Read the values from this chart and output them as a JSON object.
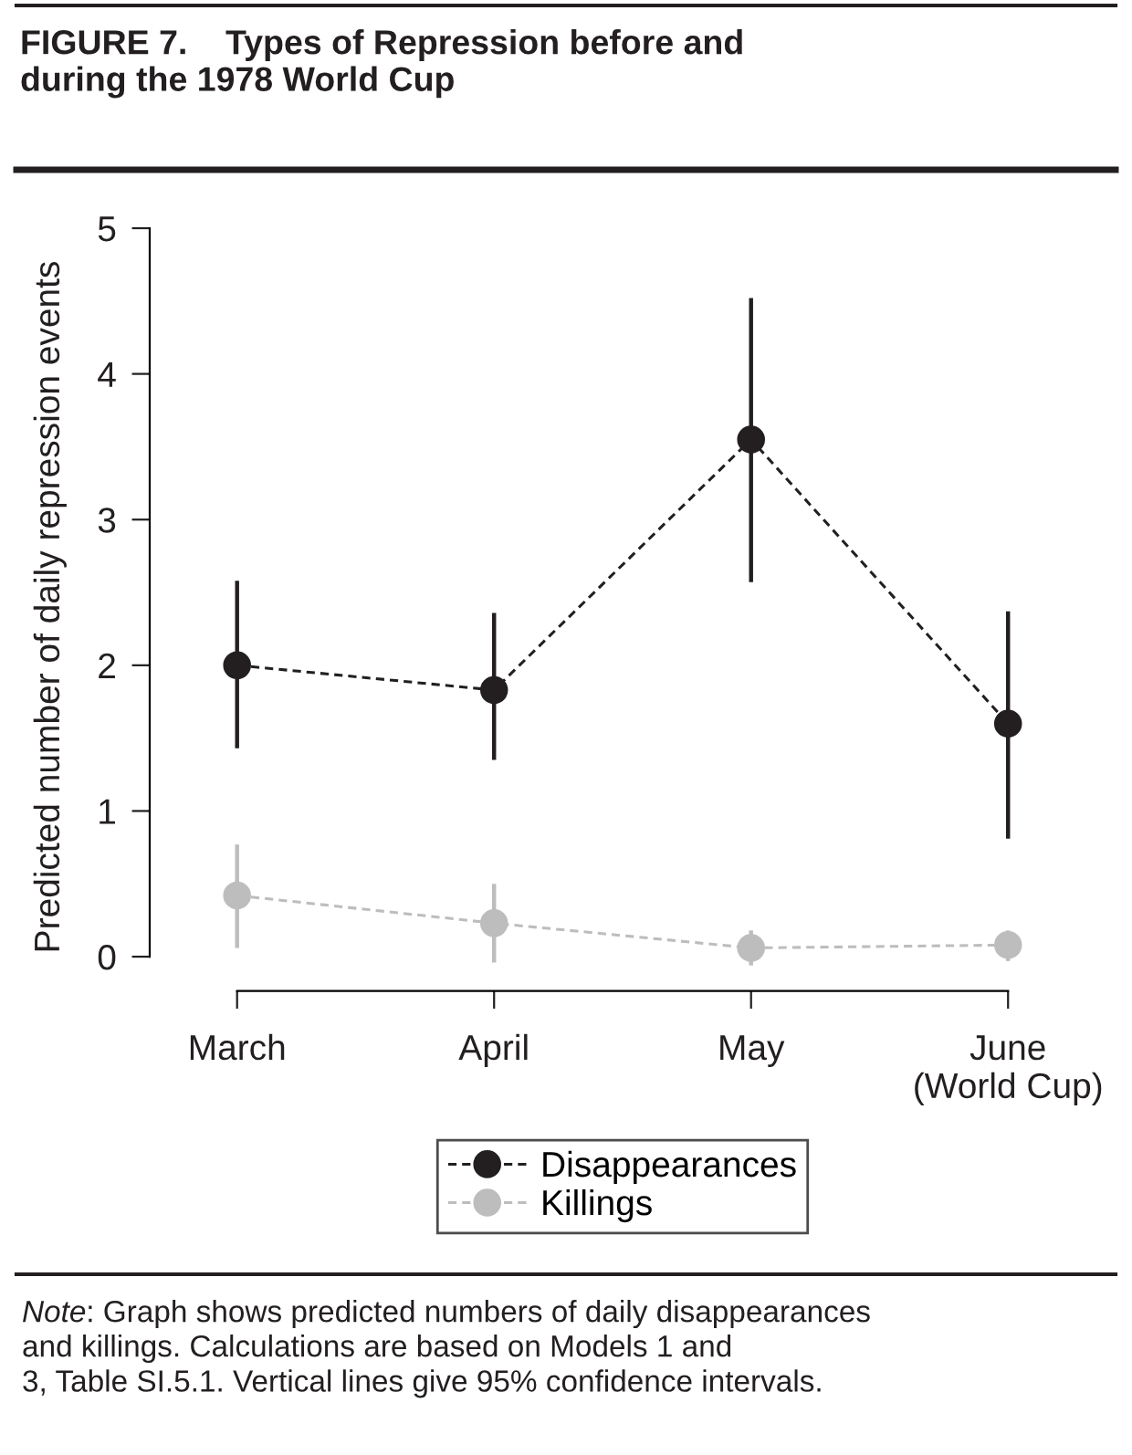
{
  "chart_data": {
    "type": "line",
    "title": "FIGURE 7.    Types of Repression before and\nduring the 1978 World Cup",
    "ylabel": "Predicted number of daily repression events",
    "categories": [
      "March",
      "April",
      "May",
      "June\n(World Cup)"
    ],
    "series": [
      {
        "name": "Disappearances",
        "color": "#231f20",
        "values": [
          2.0,
          1.83,
          3.55,
          1.6
        ],
        "errors": [
          [
            1.43,
            2.58
          ],
          [
            1.35,
            2.36
          ],
          [
            2.57,
            4.52
          ],
          [
            0.81,
            2.37
          ]
        ]
      },
      {
        "name": "Killings",
        "color": "#bdbdbd",
        "values": [
          0.42,
          0.23,
          0.06,
          0.08
        ],
        "errors": [
          [
            0.06,
            0.77
          ],
          [
            -0.04,
            0.5
          ],
          [
            -0.06,
            0.18
          ],
          [
            -0.03,
            0.18
          ]
        ]
      }
    ],
    "ylim": [
      -0.2,
      5
    ],
    "yticks": [
      0,
      1,
      2,
      3,
      4,
      5
    ],
    "marker": "circle",
    "line_style": "dashed",
    "grid": false,
    "legend": "bottom",
    "annotations": [
      "Note: Graph shows predicted numbers of daily disappearances\nand killings. Calculations are based on Models 1 and\n3, Table SI.5.1. Vertical lines give 95% confidence intervals."
    ]
  }
}
